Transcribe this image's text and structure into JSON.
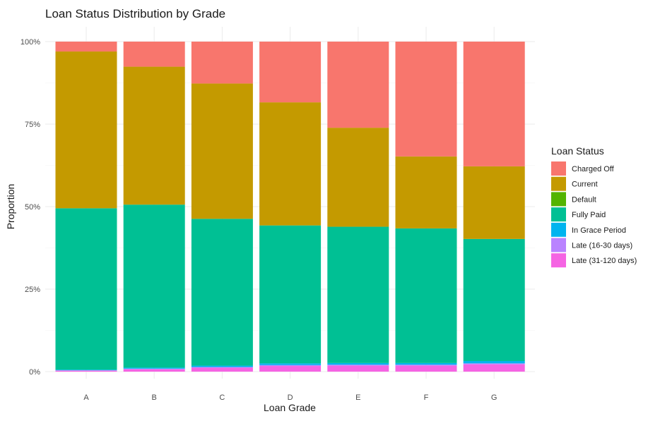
{
  "chart_data": {
    "type": "bar",
    "stacked": true,
    "normalized": true,
    "title": "Loan Status Distribution by Grade",
    "xlabel": "Loan Grade",
    "ylabel": "Proportion",
    "ylim": [
      0,
      1
    ],
    "y_ticks": [
      "0%",
      "25%",
      "50%",
      "75%",
      "100%"
    ],
    "grid": true,
    "legend_position": "right",
    "legend_title": "Loan Status",
    "categories": [
      "A",
      "B",
      "C",
      "D",
      "E",
      "F",
      "G"
    ],
    "series": [
      {
        "name": "Late (31-120 days)",
        "color": "#F564E3",
        "values": [
          0.003,
          0.007,
          0.012,
          0.017,
          0.018,
          0.018,
          0.022
        ]
      },
      {
        "name": "Late (16-30 days)",
        "color": "#B983FF",
        "values": [
          0.001,
          0.002,
          0.002,
          0.003,
          0.003,
          0.003,
          0.003
        ]
      },
      {
        "name": "In Grace Period",
        "color": "#00B4EF",
        "values": [
          0.002,
          0.003,
          0.004,
          0.005,
          0.005,
          0.005,
          0.007
        ]
      },
      {
        "name": "Default",
        "color": "#53B400",
        "values": [
          0.0,
          0.0,
          0.0,
          0.0,
          0.0,
          0.0,
          0.0
        ]
      },
      {
        "name": "Fully Paid",
        "color": "#00C094",
        "values": [
          0.489,
          0.494,
          0.445,
          0.418,
          0.413,
          0.408,
          0.37
        ]
      },
      {
        "name": "Current",
        "color": "#C49A00",
        "values": [
          0.475,
          0.418,
          0.41,
          0.373,
          0.3,
          0.218,
          0.22
        ]
      },
      {
        "name": "Charged Off",
        "color": "#F8766D",
        "values": [
          0.03,
          0.076,
          0.127,
          0.184,
          0.261,
          0.348,
          0.378
        ]
      }
    ],
    "legend_order": [
      "Charged Off",
      "Current",
      "Default",
      "Fully Paid",
      "In Grace Period",
      "Late (16-30 days)",
      "Late (31-120 days)"
    ]
  }
}
